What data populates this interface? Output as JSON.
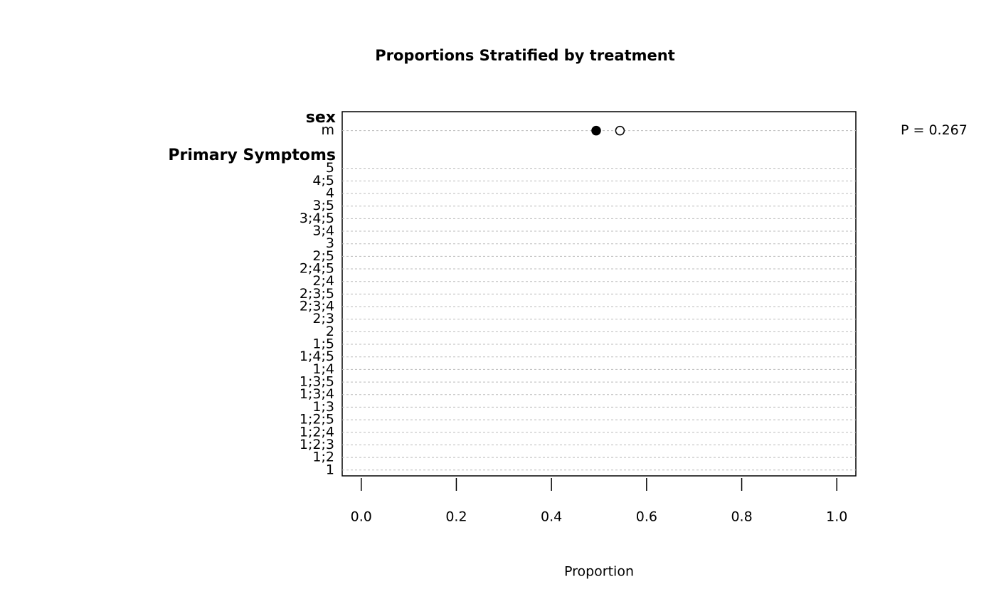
{
  "chart_data": {
    "type": "dotchart",
    "title": "Proportions Stratified by treatment",
    "x_label": "Proportion",
    "xlim": [
      -0.04,
      1.04
    ],
    "xticks": [
      {
        "value": 0,
        "label": "0.0"
      },
      0.2,
      0.4,
      0.6,
      0.8,
      {
        "value": 1,
        "label": "1.0"
      }
    ],
    "grid": true,
    "series": [
      {
        "color": "#000000",
        "marker": "filled"
      },
      {
        "color": "#000000",
        "marker": "open"
      }
    ],
    "groups": [
      {
        "label": "sex",
        "categories": [
          "m"
        ],
        "values": [
          [
            0.494
          ],
          [
            0.544
          ]
        ],
        "annotation": "P = 0.267"
      },
      {
        "label": "Primary Symptoms",
        "categories": [
          "5",
          "4;5",
          "4",
          "3;5",
          "3;4;5",
          "3;4",
          "3",
          "2;5",
          "2;4;5",
          "2;4",
          "2;3;5",
          "2;3;4",
          "2;3",
          "2",
          "1;5",
          "1;4;5",
          "1;4",
          "1;3;5",
          "1;3;4",
          "1;3",
          "1;2;5",
          "1;2;4",
          "1;2;3",
          "1;2",
          "1"
        ]
      }
    ]
  }
}
